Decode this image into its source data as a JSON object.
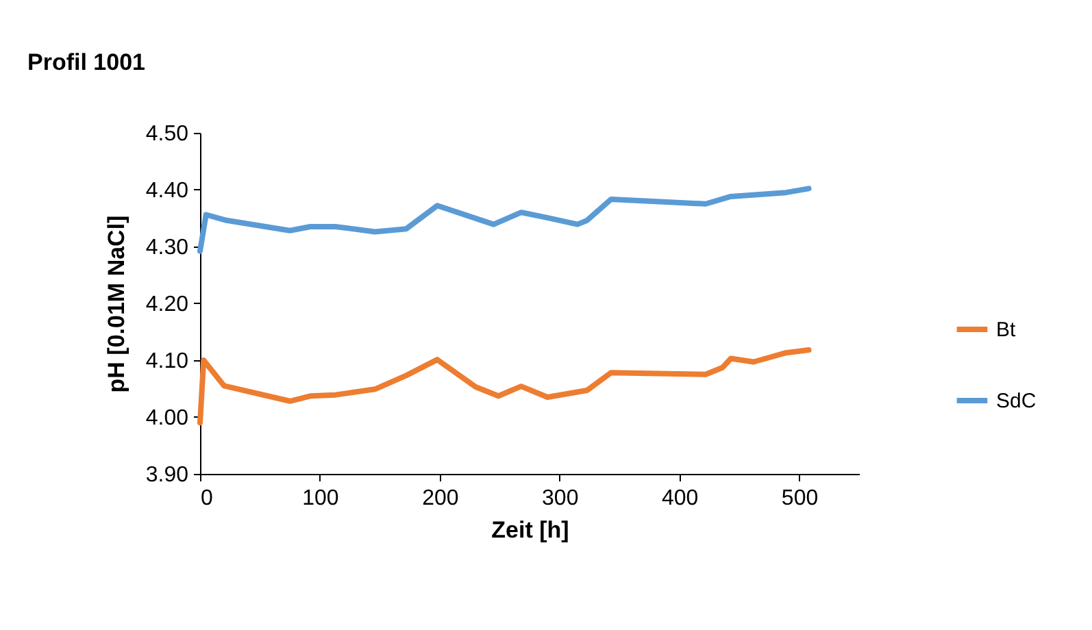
{
  "chart_data": {
    "type": "line",
    "title": "Profil 1001",
    "xlabel": "Zeit [h]",
    "ylabel": "pH [0.01M NaCl]",
    "xlim": [
      0,
      550
    ],
    "xticks": [
      0,
      100,
      200,
      300,
      400,
      500
    ],
    "ylim": [
      3.9,
      4.5
    ],
    "yticks": [
      {
        "value": 3.9,
        "label": "3.90"
      },
      {
        "value": 4.0,
        "label": "4.00"
      },
      {
        "value": 4.1,
        "label": "4.10"
      },
      {
        "value": 4.2,
        "label": "4.20"
      },
      {
        "value": 4.3,
        "label": "4.30"
      },
      {
        "value": 4.4,
        "label": "4.40"
      },
      {
        "value": 4.5,
        "label": "4.50"
      }
    ],
    "grid": false,
    "legend": "right",
    "line_style": "solid",
    "series": [
      {
        "name": "Bt",
        "color": "#ed7d31",
        "x": [
          0,
          3,
          20,
          75,
          92,
          113,
          146,
          172,
          198,
          230,
          249,
          268,
          290,
          323,
          343,
          422,
          436,
          443,
          462,
          489,
          508
        ],
        "values": [
          3.99,
          4.1,
          4.055,
          4.028,
          4.037,
          4.039,
          4.049,
          4.073,
          4.101,
          4.053,
          4.037,
          4.054,
          4.035,
          4.047,
          4.078,
          4.075,
          4.087,
          4.103,
          4.097,
          4.113,
          4.118
        ]
      },
      {
        "name": "SdC",
        "color": "#5b9bd5",
        "x": [
          0,
          5,
          22,
          75,
          92,
          113,
          146,
          172,
          198,
          245,
          268,
          289,
          315,
          323,
          343,
          422,
          443,
          489,
          508
        ],
        "values": [
          4.292,
          4.356,
          4.346,
          4.328,
          4.335,
          4.335,
          4.326,
          4.331,
          4.372,
          4.339,
          4.36,
          4.351,
          4.339,
          4.346,
          4.383,
          4.375,
          4.388,
          4.395,
          4.402
        ]
      }
    ]
  }
}
